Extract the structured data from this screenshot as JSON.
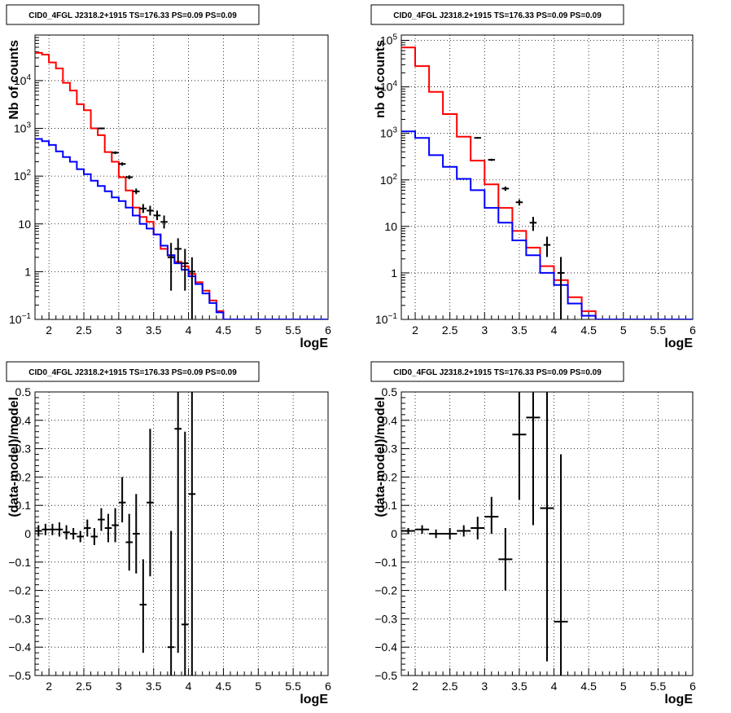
{
  "chart_data": [
    {
      "type": "step-histogram",
      "title": "CID0_4FGL J2318.2+1915 TS=176.33 PS=0.09 PS=0.09",
      "xlabel": "logE",
      "ylabel": "Nb of counts",
      "xlim": [
        1.8,
        6.0
      ],
      "ylim": [
        0.1,
        90000
      ],
      "yscale": "log",
      "grid": true,
      "xticks": [
        {
          "v": 2,
          "label": "2"
        },
        {
          "v": 2.5,
          "label": "2.5"
        },
        {
          "v": 3,
          "label": "3"
        },
        {
          "v": 3.5,
          "label": "3.5"
        },
        {
          "v": 4,
          "label": "4"
        },
        {
          "v": 4.5,
          "label": "4.5"
        },
        {
          "v": 5,
          "label": "5"
        },
        {
          "v": 5.5,
          "label": "5.5"
        },
        {
          "v": 6,
          "label": "6"
        }
      ],
      "yticks": [
        {
          "v": 0.1,
          "base": "10",
          "exp": "−1"
        },
        {
          "v": 1,
          "base": "1",
          "exp": ""
        },
        {
          "v": 10,
          "base": "10",
          "exp": ""
        },
        {
          "v": 100,
          "base": "10",
          "exp": "2"
        },
        {
          "v": 1000,
          "base": "10",
          "exp": "3"
        },
        {
          "v": 10000,
          "base": "10",
          "exp": "4"
        }
      ],
      "series": [
        {
          "color": "#ff0000",
          "edges": [
            1.8,
            1.9,
            2.0,
            2.1,
            2.2,
            2.3,
            2.4,
            2.5,
            2.6,
            2.7,
            2.8,
            2.9,
            3.0,
            3.1,
            3.2,
            3.3,
            3.4,
            3.5,
            3.6,
            3.7,
            3.8,
            3.9,
            4.0,
            4.1,
            4.2,
            4.3,
            4.4,
            4.5,
            4.6,
            4.7,
            4.8,
            4.9,
            5.0,
            5.1,
            5.2,
            5.3,
            5.4,
            5.5,
            5.6,
            5.7,
            5.8,
            5.9,
            6.0
          ],
          "values": [
            38000,
            35000,
            24000,
            18000,
            9000,
            6200,
            3200,
            2400,
            1000,
            720,
            320,
            200,
            95,
            50,
            22,
            14,
            11,
            6,
            3,
            2.2,
            1.6,
            1.3,
            0.9,
            0.6,
            0.4,
            0.25,
            0.15,
            0.1,
            0.1,
            0.1,
            0.1,
            0.1,
            0.1,
            0.1,
            0.1,
            0.1,
            0.1,
            0.1,
            0.1,
            0.1,
            0.1,
            0.1
          ]
        },
        {
          "color": "#0000ff",
          "edges": [
            1.8,
            1.9,
            2.0,
            2.1,
            2.2,
            2.3,
            2.4,
            2.5,
            2.6,
            2.7,
            2.8,
            2.9,
            3.0,
            3.1,
            3.2,
            3.3,
            3.4,
            3.5,
            3.6,
            3.7,
            3.8,
            3.9,
            4.0,
            4.1,
            4.2,
            4.3,
            4.4,
            4.5,
            4.6,
            4.7,
            4.8,
            4.9,
            5.0,
            5.1,
            5.2,
            5.3,
            5.4,
            5.5,
            5.6,
            5.7,
            5.8,
            5.9,
            6.0
          ],
          "values": [
            600,
            540,
            450,
            330,
            250,
            200,
            140,
            110,
            80,
            62,
            48,
            36,
            30,
            22,
            15,
            10,
            8,
            6,
            3.5,
            2.2,
            1.5,
            1.1,
            0.8,
            0.55,
            0.35,
            0.22,
            0.14,
            0.1,
            0.1,
            0.1,
            0.1,
            0.1,
            0.1,
            0.1,
            0.1,
            0.1,
            0.1,
            0.1,
            0.1,
            0.1,
            0.1,
            0.1
          ]
        }
      ],
      "points": [
        {
          "x": 2.75,
          "y": 1000,
          "ylo": 960,
          "yhi": 1040
        },
        {
          "x": 2.95,
          "y": 310,
          "ylo": 290,
          "yhi": 330
        },
        {
          "x": 3.05,
          "y": 180,
          "ylo": 165,
          "yhi": 195
        },
        {
          "x": 3.15,
          "y": 95,
          "ylo": 86,
          "yhi": 104
        },
        {
          "x": 3.25,
          "y": 48,
          "ylo": 42,
          "yhi": 55
        },
        {
          "x": 3.35,
          "y": 21,
          "ylo": 17,
          "yhi": 26
        },
        {
          "x": 3.45,
          "y": 19,
          "ylo": 15,
          "yhi": 24
        },
        {
          "x": 3.55,
          "y": 15,
          "ylo": 12,
          "yhi": 19
        },
        {
          "x": 3.65,
          "y": 11,
          "ylo": 8,
          "yhi": 15
        },
        {
          "x": 3.75,
          "y": 2,
          "ylo": 0.4,
          "yhi": 4
        },
        {
          "x": 3.85,
          "y": 3,
          "ylo": 1.5,
          "yhi": 5
        },
        {
          "x": 3.95,
          "y": 1.5,
          "ylo": 0.4,
          "yhi": 3
        },
        {
          "x": 4.05,
          "y": 1,
          "ylo": 0.1,
          "yhi": 2
        }
      ]
    },
    {
      "type": "step-histogram",
      "title": "CID0_4FGL J2318.2+1915 TS=176.33 PS=0.09 PS=0.09",
      "xlabel": "logE",
      "ylabel": "nb of counts",
      "xlim": [
        1.8,
        6.0
      ],
      "ylim": [
        0.1,
        130000
      ],
      "yscale": "log",
      "grid": true,
      "xticks": [
        {
          "v": 2,
          "label": "2"
        },
        {
          "v": 2.5,
          "label": "2.5"
        },
        {
          "v": 3,
          "label": "3"
        },
        {
          "v": 3.5,
          "label": "3.5"
        },
        {
          "v": 4,
          "label": "4"
        },
        {
          "v": 4.5,
          "label": "4.5"
        },
        {
          "v": 5,
          "label": "5"
        },
        {
          "v": 5.5,
          "label": "5.5"
        },
        {
          "v": 6,
          "label": "6"
        }
      ],
      "yticks": [
        {
          "v": 0.1,
          "base": "10",
          "exp": "−1"
        },
        {
          "v": 1,
          "base": "1",
          "exp": ""
        },
        {
          "v": 10,
          "base": "10",
          "exp": ""
        },
        {
          "v": 100,
          "base": "10",
          "exp": "2"
        },
        {
          "v": 1000,
          "base": "10",
          "exp": "3"
        },
        {
          "v": 10000,
          "base": "10",
          "exp": "4"
        },
        {
          "v": 100000,
          "base": "10",
          "exp": "5"
        }
      ],
      "series": [
        {
          "color": "#ff0000",
          "edges": [
            1.8,
            2.0,
            2.2,
            2.4,
            2.6,
            2.8,
            3.0,
            3.2,
            3.4,
            3.6,
            3.8,
            4.0,
            4.2,
            4.4,
            4.6,
            4.8,
            5.0,
            5.2,
            5.4,
            5.6,
            5.8,
            6.0
          ],
          "values": [
            70000,
            28000,
            7800,
            2600,
            850,
            260,
            80,
            25,
            8,
            3.5,
            1.4,
            0.7,
            0.3,
            0.15,
            0.1,
            0.1,
            0.1,
            0.1,
            0.1,
            0.1,
            0.1
          ]
        },
        {
          "color": "#0000ff",
          "edges": [
            1.8,
            2.0,
            2.2,
            2.4,
            2.6,
            2.8,
            3.0,
            3.2,
            3.4,
            3.6,
            3.8,
            4.0,
            4.2,
            4.4,
            4.6,
            4.8,
            5.0,
            5.2,
            5.4,
            5.6,
            5.8,
            6.0
          ],
          "values": [
            1100,
            800,
            340,
            190,
            105,
            60,
            25,
            12,
            5,
            2.4,
            1.0,
            0.55,
            0.22,
            0.12,
            0.1,
            0.1,
            0.1,
            0.1,
            0.1,
            0.1,
            0.1
          ]
        }
      ],
      "points": [
        {
          "x": 2.9,
          "y": 800,
          "ylo": 770,
          "yhi": 830
        },
        {
          "x": 3.1,
          "y": 270,
          "ylo": 255,
          "yhi": 285
        },
        {
          "x": 3.3,
          "y": 65,
          "ylo": 58,
          "yhi": 72
        },
        {
          "x": 3.5,
          "y": 33,
          "ylo": 28,
          "yhi": 38
        },
        {
          "x": 3.7,
          "y": 12,
          "ylo": 8,
          "yhi": 16
        },
        {
          "x": 3.9,
          "y": 4,
          "ylo": 2.2,
          "yhi": 6
        },
        {
          "x": 4.1,
          "y": 1,
          "ylo": 0.1,
          "yhi": 2.2
        }
      ]
    },
    {
      "type": "errorbar",
      "title": "CID0_4FGL J2318.2+1915 TS=176.33 PS=0.09 PS=0.09",
      "xlabel": "logE",
      "ylabel": "(data-model)/model",
      "xlim": [
        1.8,
        6.0
      ],
      "ylim": [
        -0.5,
        0.5
      ],
      "yscale": "linear",
      "grid": true,
      "xticks": [
        {
          "v": 2,
          "label": "2"
        },
        {
          "v": 2.5,
          "label": "2.5"
        },
        {
          "v": 3,
          "label": "3"
        },
        {
          "v": 3.5,
          "label": "3.5"
        },
        {
          "v": 4,
          "label": "4"
        },
        {
          "v": 4.5,
          "label": "4.5"
        },
        {
          "v": 5,
          "label": "5"
        },
        {
          "v": 5.5,
          "label": "5.5"
        },
        {
          "v": 6,
          "label": "6"
        }
      ],
      "yticks": [
        {
          "v": -0.5,
          "label": "−0.5"
        },
        {
          "v": -0.4,
          "label": "−0.4"
        },
        {
          "v": -0.3,
          "label": "−0.3"
        },
        {
          "v": -0.2,
          "label": "−0.2"
        },
        {
          "v": -0.1,
          "label": "−0.1"
        },
        {
          "v": 0,
          "label": "0"
        },
        {
          "v": 0.1,
          "label": "0.1"
        },
        {
          "v": 0.2,
          "label": "0.2"
        },
        {
          "v": 0.3,
          "label": "0.3"
        },
        {
          "v": 0.4,
          "label": "0.4"
        },
        {
          "v": 0.5,
          "label": "0.5"
        }
      ],
      "xhalfwidth": 0.05,
      "points": [
        {
          "x": 1.85,
          "y": 0.01,
          "ylo": -0.01,
          "yhi": 0.03
        },
        {
          "x": 1.95,
          "y": 0.015,
          "ylo": -0.005,
          "yhi": 0.035
        },
        {
          "x": 2.05,
          "y": 0.015,
          "ylo": -0.005,
          "yhi": 0.035
        },
        {
          "x": 2.15,
          "y": 0.015,
          "ylo": -0.01,
          "yhi": 0.04
        },
        {
          "x": 2.25,
          "y": 0.005,
          "ylo": -0.02,
          "yhi": 0.03
        },
        {
          "x": 2.35,
          "y": 0.0,
          "ylo": -0.02,
          "yhi": 0.02
        },
        {
          "x": 2.45,
          "y": -0.01,
          "ylo": -0.03,
          "yhi": 0.01
        },
        {
          "x": 2.55,
          "y": 0.02,
          "ylo": -0.01,
          "yhi": 0.05
        },
        {
          "x": 2.65,
          "y": -0.01,
          "ylo": -0.04,
          "yhi": 0.02
        },
        {
          "x": 2.75,
          "y": 0.05,
          "ylo": 0.01,
          "yhi": 0.09
        },
        {
          "x": 2.85,
          "y": 0.02,
          "ylo": -0.03,
          "yhi": 0.07
        },
        {
          "x": 2.95,
          "y": 0.03,
          "ylo": -0.03,
          "yhi": 0.09
        },
        {
          "x": 3.05,
          "y": 0.11,
          "ylo": 0.04,
          "yhi": 0.2
        },
        {
          "x": 3.15,
          "y": -0.03,
          "ylo": -0.13,
          "yhi": 0.07
        },
        {
          "x": 3.25,
          "y": 0.0,
          "ylo": -0.14,
          "yhi": 0.14
        },
        {
          "x": 3.35,
          "y": -0.25,
          "ylo": -0.42,
          "yhi": -0.09
        },
        {
          "x": 3.45,
          "y": 0.11,
          "ylo": -0.15,
          "yhi": 0.37
        },
        {
          "x": 3.75,
          "y": -0.4,
          "ylo": -0.55,
          "yhi": 0.01
        },
        {
          "x": 3.85,
          "y": 0.37,
          "ylo": -0.42,
          "yhi": 0.55
        },
        {
          "x": 3.95,
          "y": -0.32,
          "ylo": -0.55,
          "yhi": 0.36
        },
        {
          "x": 4.05,
          "y": 0.14,
          "ylo": -0.55,
          "yhi": 0.55
        }
      ]
    },
    {
      "type": "errorbar",
      "title": "CID0_4FGL J2318.2+1915 TS=176.33 PS=0.09 PS=0.09",
      "xlabel": "logE",
      "ylabel": "(data-model)/model",
      "xlim": [
        1.8,
        6.0
      ],
      "ylim": [
        -0.5,
        0.5
      ],
      "yscale": "linear",
      "grid": true,
      "xticks": [
        {
          "v": 2,
          "label": "2"
        },
        {
          "v": 2.5,
          "label": "2.5"
        },
        {
          "v": 3,
          "label": "3"
        },
        {
          "v": 3.5,
          "label": "3.5"
        },
        {
          "v": 4,
          "label": "4"
        },
        {
          "v": 4.5,
          "label": "4.5"
        },
        {
          "v": 5,
          "label": "5"
        },
        {
          "v": 5.5,
          "label": "5.5"
        },
        {
          "v": 6,
          "label": "6"
        }
      ],
      "yticks": [
        {
          "v": -0.5,
          "label": "−0.5"
        },
        {
          "v": -0.4,
          "label": "−0.4"
        },
        {
          "v": -0.3,
          "label": "−0.3"
        },
        {
          "v": -0.2,
          "label": "−0.2"
        },
        {
          "v": -0.1,
          "label": "−0.1"
        },
        {
          "v": 0,
          "label": "0"
        },
        {
          "v": 0.1,
          "label": "0.1"
        },
        {
          "v": 0.2,
          "label": "0.2"
        },
        {
          "v": 0.3,
          "label": "0.3"
        },
        {
          "v": 0.4,
          "label": "0.4"
        },
        {
          "v": 0.5,
          "label": "0.5"
        }
      ],
      "xhalfwidth": 0.1,
      "points": [
        {
          "x": 1.9,
          "y": 0.01,
          "ylo": 0.0,
          "yhi": 0.02
        },
        {
          "x": 2.1,
          "y": 0.015,
          "ylo": 0.0,
          "yhi": 0.03
        },
        {
          "x": 2.3,
          "y": 0.0,
          "ylo": -0.015,
          "yhi": 0.015
        },
        {
          "x": 2.5,
          "y": 0.0,
          "ylo": -0.02,
          "yhi": 0.02
        },
        {
          "x": 2.7,
          "y": 0.01,
          "ylo": -0.01,
          "yhi": 0.03
        },
        {
          "x": 2.9,
          "y": 0.02,
          "ylo": -0.02,
          "yhi": 0.06
        },
        {
          "x": 3.1,
          "y": 0.06,
          "ylo": 0.0,
          "yhi": 0.13
        },
        {
          "x": 3.3,
          "y": -0.09,
          "ylo": -0.2,
          "yhi": 0.02
        },
        {
          "x": 3.5,
          "y": 0.35,
          "ylo": 0.12,
          "yhi": 0.55
        },
        {
          "x": 3.7,
          "y": 0.41,
          "ylo": 0.03,
          "yhi": 0.55
        },
        {
          "x": 3.9,
          "y": 0.09,
          "ylo": -0.45,
          "yhi": 0.55
        },
        {
          "x": 4.1,
          "y": -0.31,
          "ylo": -0.55,
          "yhi": 0.28
        }
      ]
    }
  ]
}
